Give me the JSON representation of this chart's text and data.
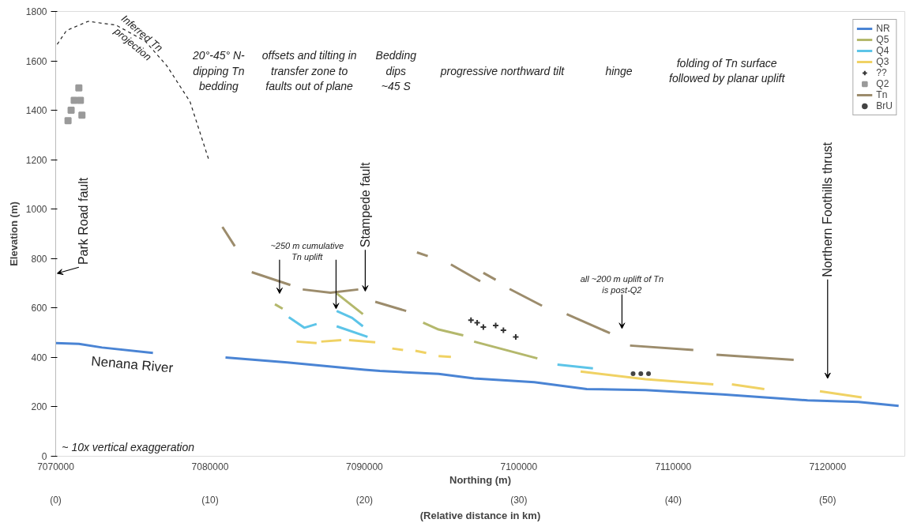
{
  "chart_data": {
    "type": "line",
    "xlabel": "Northing (m)",
    "x2label": "(Relative distance in km)",
    "ylabel": "Elevation (m)",
    "x2lim": [
      0,
      55
    ],
    "x2ticks": [
      {
        "value": 0,
        "label": "(0)"
      },
      {
        "value": 10,
        "label": "(10)"
      },
      {
        "value": 20,
        "label": "(20)"
      },
      {
        "value": 30,
        "label": "(30)"
      },
      {
        "value": 40,
        "label": "(40)"
      },
      {
        "value": 50,
        "label": "(50)"
      }
    ],
    "xlim": [
      7070000,
      7125000
    ],
    "xticks": [
      7070000,
      7080000,
      7090000,
      7100000,
      7110000,
      7120000
    ],
    "ylim": [
      0,
      1800
    ],
    "yticks": [
      0,
      200,
      400,
      600,
      800,
      1000,
      1200,
      1400,
      1600,
      1800
    ],
    "grid": false,
    "legend": "top right",
    "series": [
      {
        "name": "NR",
        "color": "#4a84d4",
        "x": [
          7070000,
          7071500,
          7073000,
          7076300
        ],
        "values": [
          458,
          455,
          440,
          418
        ]
      },
      {
        "name": "Q5",
        "color": "#b4b86c",
        "x": [
          7084200,
          7084700
        ],
        "values": [
          615,
          597
        ]
      },
      {
        "name": "Q4",
        "color": "#5cc4e8",
        "x": [
          7085100,
          7086100,
          7086900
        ],
        "values": [
          563,
          520,
          535
        ]
      },
      {
        "name": "Q3",
        "color": "#f0d264",
        "x": [
          7085600,
          7086900
        ],
        "values": [
          464,
          458
        ]
      },
      {
        "name": "??",
        "type": "scatter",
        "marker": "cross",
        "color": "#333333",
        "x": [
          7096900,
          7097300,
          7097700,
          7098500,
          7099000,
          7099800
        ],
        "values": [
          551,
          540,
          523,
          529,
          510,
          483
        ]
      },
      {
        "name": "Q2",
        "type": "scatter",
        "marker": "square",
        "color": "#9a9a9a",
        "x": [
          7070800,
          7071000,
          7071200,
          7071500,
          7071600,
          7071700
        ],
        "values": [
          1358,
          1400,
          1440,
          1491,
          1440,
          1380
        ]
      },
      {
        "name": "Tn",
        "color": "#9c8c6c",
        "x": [
          7080800,
          7081600
        ],
        "values": [
          928,
          850
        ]
      },
      {
        "name": "BrU",
        "type": "scatter",
        "marker": "circle",
        "color": "#444444",
        "x": [
          7107400,
          7107900,
          7108400
        ],
        "values": [
          334,
          334,
          334
        ]
      },
      {
        "color": "#4a84d4",
        "x": [
          7081000,
          7085000,
          7090000,
          7091000,
          7094800,
          7097100,
          7101000,
          7104400,
          7106000,
          7108200,
          7113200,
          7118700,
          7122000,
          7124600
        ],
        "values": [
          400,
          380,
          350,
          345,
          333,
          315,
          300,
          272,
          270,
          268,
          250,
          226,
          220,
          204
        ]
      },
      {
        "color": "#b4b86c",
        "x": [
          7088200,
          7089900
        ],
        "values": [
          659,
          575
        ]
      },
      {
        "color": "#b4b86c",
        "x": [
          7093800,
          7094800,
          7096400
        ],
        "values": [
          541,
          513,
          489
        ]
      },
      {
        "color": "#b4b86c",
        "x": [
          7097100,
          7101200
        ],
        "values": [
          464,
          396
        ]
      },
      {
        "color": "#5cc4e8",
        "x": [
          7088200,
          7089200,
          7089900
        ],
        "values": [
          588,
          560,
          526
        ]
      },
      {
        "color": "#5cc4e8",
        "x": [
          7088200,
          7090200
        ],
        "values": [
          526,
          483
        ]
      },
      {
        "color": "#5cc4e8",
        "x": [
          7102500,
          7104800
        ],
        "values": [
          371,
          356
        ]
      },
      {
        "color": "#f0d264",
        "x": [
          7087200,
          7088500
        ],
        "values": [
          464,
          470
        ]
      },
      {
        "color": "#f0d264",
        "x": [
          7089000,
          7090700
        ],
        "values": [
          470,
          461
        ]
      },
      {
        "color": "#f0d264",
        "x": [
          7091800,
          7092500
        ],
        "values": [
          436,
          430
        ]
      },
      {
        "color": "#f0d264",
        "x": [
          7093300,
          7094000
        ],
        "values": [
          427,
          418
        ]
      },
      {
        "color": "#f0d264",
        "x": [
          7094800,
          7095600
        ],
        "values": [
          405,
          402
        ]
      },
      {
        "color": "#f0d264",
        "x": [
          7104000,
          7108200,
          7112600
        ],
        "values": [
          343,
          312,
          291
        ]
      },
      {
        "color": "#f0d264",
        "x": [
          7113800,
          7115900
        ],
        "values": [
          291,
          272
        ]
      },
      {
        "color": "#f0d264",
        "x": [
          7119500,
          7122200
        ],
        "values": [
          263,
          238
        ]
      },
      {
        "color": "#9c8c6c",
        "x": [
          7082700,
          7085200
        ],
        "values": [
          745,
          693
        ]
      },
      {
        "color": "#9c8c6c",
        "x": [
          7086000,
          7087800,
          7089600
        ],
        "values": [
          675,
          662,
          675
        ]
      },
      {
        "color": "#9c8c6c",
        "x": [
          7090700,
          7092700
        ],
        "values": [
          625,
          588
        ]
      },
      {
        "color": "#9c8c6c",
        "x": [
          7093400,
          7094100
        ],
        "values": [
          825,
          810
        ]
      },
      {
        "color": "#9c8c6c",
        "x": [
          7095600,
          7097500
        ],
        "values": [
          776,
          708
        ]
      },
      {
        "color": "#9c8c6c",
        "x": [
          7097700,
          7098500
        ],
        "values": [
          742,
          714
        ]
      },
      {
        "color": "#9c8c6c",
        "x": [
          7099400,
          7101500
        ],
        "values": [
          677,
          609
        ]
      },
      {
        "color": "#9c8c6c",
        "x": [
          7103100,
          7105900
        ],
        "values": [
          575,
          498
        ]
      },
      {
        "color": "#9c8c6c",
        "x": [
          7107200,
          7111300
        ],
        "values": [
          448,
          430
        ]
      },
      {
        "color": "#9c8c6c",
        "x": [
          7112800,
          7117800
        ],
        "values": [
          411,
          390
        ]
      },
      {
        "line_style": "dashed",
        "color": "#222222",
        "x": [
          7070100,
          7070700,
          7072100,
          7073900,
          7075800,
          7077200,
          7078700,
          7079900
        ],
        "values": [
          1667,
          1723,
          1760,
          1745,
          1680,
          1580,
          1435,
          1203
        ]
      }
    ],
    "annotations": [
      "Park Road fault",
      "Stampede fault",
      "Northern Foothills thrust",
      "Inferred Tn\nprojection",
      "20°-45° N-\ndipping Tn\nbedding",
      "offsets and tilting in\ntransfer zone to\nfaults out of plane",
      "Bedding\ndips\n~45 S",
      "progressive northward tilt",
      "hinge",
      "folding of Tn surface\nfollowed by planar uplift",
      {
        "text": "~250 m cumulative\nTn uplift",
        "x": 7088160,
        "y": 597
      },
      "all ~200 m uplift of Tn\nis post-Q2",
      "Nenana River",
      "~ 10x vertical exaggeration"
    ]
  }
}
